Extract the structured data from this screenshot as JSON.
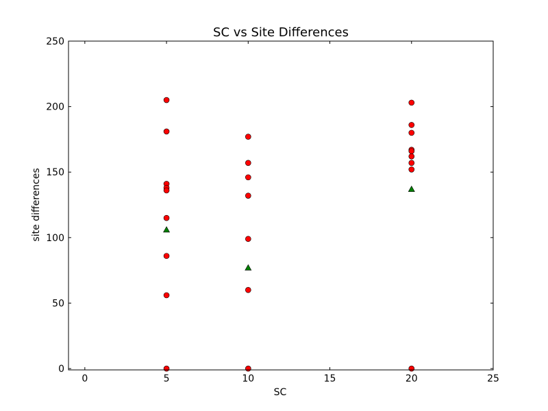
{
  "chart_data": {
    "type": "scatter",
    "title": "SC vs Site Differences",
    "xlabel": "SC",
    "ylabel": "site differences",
    "xlim": [
      -1,
      25
    ],
    "ylim": [
      -1,
      250
    ],
    "xticks": [
      0,
      5,
      10,
      15,
      20,
      25
    ],
    "yticks": [
      0,
      50,
      100,
      150,
      200,
      250
    ],
    "grid": false,
    "legend": "none",
    "series": [
      {
        "marker": "circle",
        "color": "#ff0000",
        "points": [
          [
            5,
            205
          ],
          [
            5,
            181
          ],
          [
            5,
            141
          ],
          [
            5,
            138
          ],
          [
            5,
            136
          ],
          [
            5,
            115
          ],
          [
            5,
            86
          ],
          [
            5,
            56
          ],
          [
            5,
            0
          ],
          [
            10,
            177
          ],
          [
            10,
            157
          ],
          [
            10,
            146
          ],
          [
            10,
            132
          ],
          [
            10,
            99
          ],
          [
            10,
            60
          ],
          [
            10,
            0
          ],
          [
            20,
            203
          ],
          [
            20,
            186
          ],
          [
            20,
            180
          ],
          [
            20,
            167
          ],
          [
            20,
            166
          ],
          [
            20,
            162
          ],
          [
            20,
            157
          ],
          [
            20,
            152
          ],
          [
            20,
            0
          ]
        ]
      },
      {
        "marker": "triangle",
        "color": "#008000",
        "points": [
          [
            5,
            106
          ],
          [
            10,
            77
          ],
          [
            20,
            137
          ]
        ]
      }
    ]
  }
}
